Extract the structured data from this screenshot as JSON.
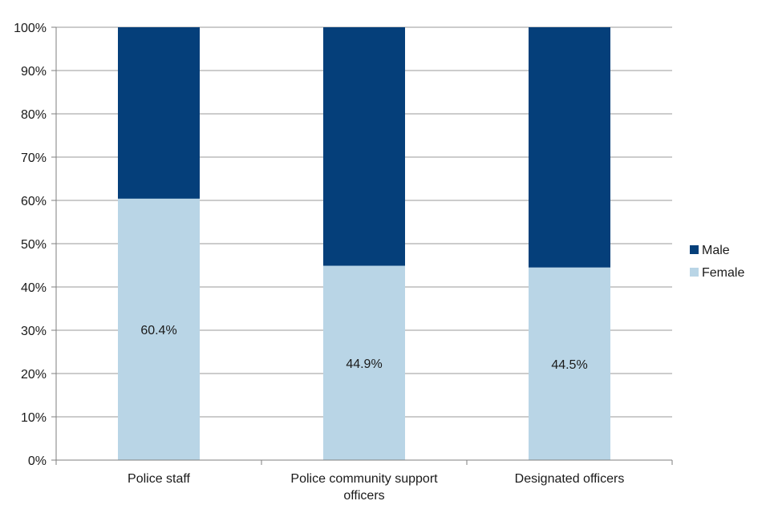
{
  "chart_data": {
    "type": "bar",
    "stacked": true,
    "percent": true,
    "categories": [
      "Police staff",
      "Police community support officers",
      "Designated officers"
    ],
    "category_lines": [
      [
        "Police staff"
      ],
      [
        "Police community support",
        "officers"
      ],
      [
        "Designated officers"
      ]
    ],
    "series": [
      {
        "name": "Female",
        "values": [
          60.4,
          44.9,
          44.5
        ],
        "color": "#b9d5e6"
      },
      {
        "name": "Male",
        "values": [
          39.6,
          55.1,
          55.5
        ],
        "color": "#053f7a"
      }
    ],
    "data_labels": [
      "60.4%",
      "44.9%",
      "44.5%"
    ],
    "ylim": [
      0,
      100
    ],
    "yticks": [
      0,
      10,
      20,
      30,
      40,
      50,
      60,
      70,
      80,
      90,
      100
    ],
    "ytick_labels": [
      "0%",
      "10%",
      "20%",
      "30%",
      "40%",
      "50%",
      "60%",
      "70%",
      "80%",
      "90%",
      "100%"
    ],
    "legend": {
      "position": "right",
      "entries": [
        "Male",
        "Female"
      ]
    },
    "grid": true
  }
}
